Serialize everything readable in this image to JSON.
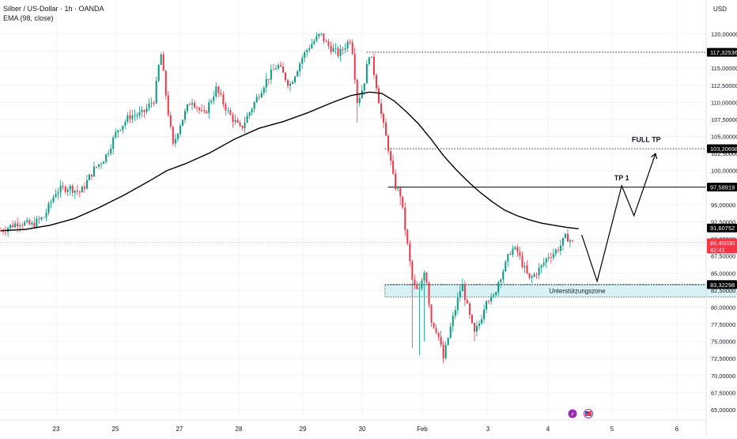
{
  "header": {
    "symbol_line": "Silber / US-Dollar · 1h · OANDA",
    "indicator_line": "EMA (98, close)"
  },
  "axis": {
    "currency": "USD",
    "y_ticks": [
      "120,00000",
      "117,50000",
      "115,00000",
      "112,50000",
      "110,00000",
      "107,50000",
      "105,00000",
      "102,50000",
      "100,00000",
      "97,50000",
      "95,00000",
      "92,50000",
      "90,00000",
      "87,50000",
      "85,00000",
      "82,50000",
      "80,00000",
      "77,50000",
      "75,00000",
      "72,50000",
      "70,00000",
      "67,50000",
      "65,00000"
    ],
    "x_ticks": [
      "23",
      "25",
      "27",
      "28",
      "29",
      "30",
      "Feb",
      "3",
      "4",
      "5",
      "6"
    ]
  },
  "levels": [
    {
      "value": 117.32536,
      "label": "117,32536",
      "style": "dotted",
      "from": 59.5
    },
    {
      "value": 103.20698,
      "label": "103,20698",
      "style": "dotted",
      "from": 62.5
    },
    {
      "value": 97.58919,
      "label": "97,58919",
      "style": "solid",
      "from": 63
    },
    {
      "value": 91.60752,
      "label": "91,60752",
      "style": "none",
      "from": null
    },
    {
      "value": 83.32298,
      "label": "83,32298",
      "style": "dotted",
      "from": 62.5
    }
  ],
  "last_price": {
    "value": 89.4503,
    "label": "89,45030",
    "countdown": "42:41",
    "color": "#f23645"
  },
  "zone": {
    "label": "Unterstützungszone",
    "top": 83.3,
    "bottom": 81.5,
    "from": 62.5,
    "to": 118
  },
  "targets": [
    {
      "label": "TP 1",
      "x": 101,
      "y": 98.6
    },
    {
      "label": "FULL TP",
      "x": 105,
      "y": 104.2
    }
  ],
  "projection": [
    [
      94.5,
      90.6
    ],
    [
      97,
      83.8
    ],
    [
      101,
      97.8
    ],
    [
      103,
      93.4
    ],
    [
      106.5,
      102.5
    ]
  ],
  "ema_series": [
    [
      0,
      91.2
    ],
    [
      4,
      91.4
    ],
    [
      8,
      92.0
    ],
    [
      12,
      93.0
    ],
    [
      16,
      94.6
    ],
    [
      20,
      96.4
    ],
    [
      24,
      98.4
    ],
    [
      27,
      100.0
    ],
    [
      30,
      101.0
    ],
    [
      34,
      102.6
    ],
    [
      38,
      104.6
    ],
    [
      42,
      106.2
    ],
    [
      46,
      107.2
    ],
    [
      50,
      108.5
    ],
    [
      54,
      110.0
    ],
    [
      57,
      111.0
    ],
    [
      60,
      111.5
    ],
    [
      62,
      111.3
    ],
    [
      64,
      110.2
    ],
    [
      66,
      108.6
    ],
    [
      68,
      106.8
    ],
    [
      70,
      104.6
    ],
    [
      72,
      102.2
    ],
    [
      74,
      100.2
    ],
    [
      76,
      98.4
    ],
    [
      78,
      96.8
    ],
    [
      80,
      95.4
    ],
    [
      82,
      94.2
    ],
    [
      84,
      93.4
    ],
    [
      86,
      92.8
    ],
    [
      88,
      92.3
    ],
    [
      90,
      92.0
    ],
    [
      92,
      91.7
    ],
    [
      94,
      91.5
    ]
  ],
  "chart_data": {
    "type": "candlestick",
    "title": "Silber / US-Dollar · 1h · OANDA",
    "indicator": "EMA (98, close)",
    "xlabel": "",
    "ylabel": "USD",
    "ylim": [
      65,
      122
    ],
    "x_tick_labels": [
      "23",
      "25",
      "27",
      "28",
      "29",
      "30",
      "Feb",
      "3",
      "4",
      "5",
      "6"
    ],
    "price_path": [
      [
        0,
        91.2
      ],
      [
        3,
        92.5
      ],
      [
        5,
        92.0
      ],
      [
        7,
        93.2
      ],
      [
        9,
        97.0
      ],
      [
        11,
        97.6
      ],
      [
        13,
        96.8
      ],
      [
        15,
        100.0
      ],
      [
        17,
        102.0
      ],
      [
        19,
        106.0
      ],
      [
        21,
        108.0
      ],
      [
        23,
        108.3
      ],
      [
        25,
        110.5
      ],
      [
        26,
        117.5
      ],
      [
        27,
        110.0
      ],
      [
        28,
        103.5
      ],
      [
        29,
        106.5
      ],
      [
        31,
        110.5
      ],
      [
        33,
        108.0
      ],
      [
        35,
        112.0
      ],
      [
        37,
        108.5
      ],
      [
        39,
        106.0
      ],
      [
        41,
        109.5
      ],
      [
        43,
        113.0
      ],
      [
        45,
        115.5
      ],
      [
        47,
        112.5
      ],
      [
        49,
        116.5
      ],
      [
        50,
        118.0
      ],
      [
        52,
        120.0
      ],
      [
        53,
        118.5
      ],
      [
        55,
        117.0
      ],
      [
        57,
        119.5
      ],
      [
        58,
        110.0
      ],
      [
        59,
        112.5
      ],
      [
        60,
        117.5
      ],
      [
        61,
        113.0
      ],
      [
        62,
        107.5
      ],
      [
        63,
        103.5
      ],
      [
        64,
        98.0
      ],
      [
        65,
        96.5
      ],
      [
        66,
        90.0
      ],
      [
        67,
        83.5
      ],
      [
        68,
        82.0
      ],
      [
        69,
        86.0
      ],
      [
        70,
        78.0
      ],
      [
        71,
        76.5
      ],
      [
        72,
        72.5
      ],
      [
        73,
        76.5
      ],
      [
        74,
        80.0
      ],
      [
        75,
        83.5
      ],
      [
        76,
        79.5
      ],
      [
        77,
        76.0
      ],
      [
        78,
        78.0
      ],
      [
        79,
        81.5
      ],
      [
        80,
        81.0
      ],
      [
        81,
        84.0
      ],
      [
        82,
        86.0
      ],
      [
        83,
        88.5
      ],
      [
        84,
        88.2
      ],
      [
        85,
        86.0
      ],
      [
        86,
        84.0
      ],
      [
        87,
        85.0
      ],
      [
        88,
        86.0
      ],
      [
        89,
        87.5
      ],
      [
        90,
        88.0
      ],
      [
        91,
        89.0
      ],
      [
        92,
        90.4
      ],
      [
        93,
        89.45
      ]
    ],
    "spikes": [
      [
        58,
        107.0
      ],
      [
        65,
        95.0
      ],
      [
        67,
        74.0
      ],
      [
        68,
        73.0
      ],
      [
        69,
        75.0
      ],
      [
        72,
        71.8
      ],
      [
        77,
        75.0
      ]
    ],
    "ema_period": 98,
    "last_price": 89.4503,
    "annotations": [
      "Unterstützungszone",
      "TP 1",
      "FULL TP"
    ]
  }
}
